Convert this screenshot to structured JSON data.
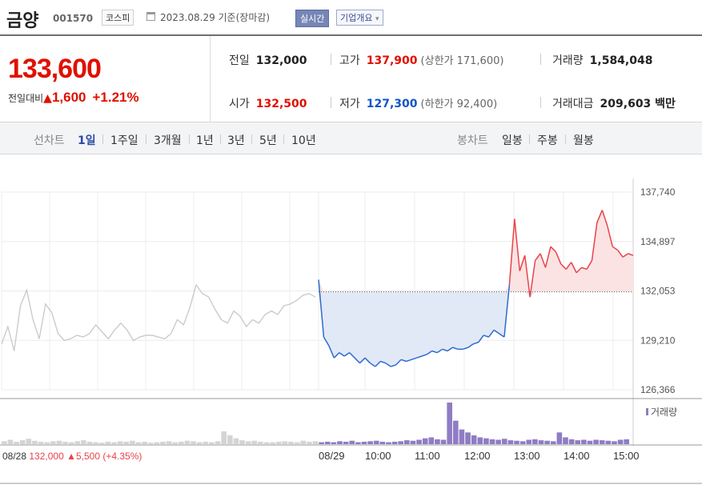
{
  "header": {
    "company": "금양",
    "code": "001570",
    "market": "코스피",
    "calendar_icon": "calendar-icon",
    "date": "2023.08.29 기준(장마감)",
    "realtime_label": "실시간",
    "overview_label": "기업개요",
    "overview_caret": "▾"
  },
  "price": {
    "current": "133,600",
    "change_label": "전일대비",
    "change_arrow": "▲",
    "change_amount": "1,600",
    "change_pct": "+1.21%",
    "up_color": "#e01000",
    "down_color": "#1055c8"
  },
  "stats": {
    "prev_close": {
      "label": "전일",
      "value": "132,000"
    },
    "high": {
      "label": "고가",
      "value": "137,900",
      "sub": "(상한가 171,600)"
    },
    "volume": {
      "label": "거래량",
      "value": "1,584,048"
    },
    "open": {
      "label": "시가",
      "value": "132,500"
    },
    "low": {
      "label": "저가",
      "value": "127,300",
      "sub": "(하한가 92,400)"
    },
    "trade_value": {
      "label": "거래대금",
      "value": "209,603 백만"
    }
  },
  "tabs": {
    "line_label": "선차트",
    "line_items": [
      "1일",
      "1주일",
      "3개월",
      "1년",
      "3년",
      "5년",
      "10년"
    ],
    "active": "1일",
    "candle_label": "봉차트",
    "candle_items": [
      "일봉",
      "주봉",
      "월봉"
    ]
  },
  "chart_data": {
    "type": "line",
    "y_ticks": [
      "137,740",
      "134,897",
      "132,053",
      "129,210",
      "126,366"
    ],
    "ylim": [
      126366,
      137740
    ],
    "baseline": 132000,
    "x_ticks": [
      "08/29",
      "10:00",
      "11:00",
      "12:00",
      "13:00",
      "14:00",
      "15:00"
    ],
    "prev_day": {
      "label": "08/28",
      "close": "132,000",
      "arrow": "▲",
      "change": "5,500",
      "pct": "(+4.35%)"
    },
    "volume_legend": "거래량",
    "grid": true,
    "prev_session_color": "#c8c8c8",
    "up_color": "#e8434a",
    "down_color": "#2e6bd1",
    "up_fill": "#fbe3e3",
    "down_fill": "#e1e9f7",
    "volume_color": "#8f7cc4",
    "prev_series": [
      129000,
      130000,
      128600,
      131200,
      132100,
      130400,
      129300,
      131300,
      130800,
      129600,
      129200,
      129300,
      129500,
      129400,
      129600,
      130100,
      129700,
      129300,
      129800,
      130200,
      129800,
      129200,
      129400,
      129500,
      129500,
      129400,
      129300,
      129600,
      130400,
      130100,
      131100,
      132400,
      131900,
      131700,
      131000,
      130400,
      130200,
      130900,
      130600,
      130000,
      130400,
      130200,
      130700,
      130900,
      130700,
      131200,
      131300,
      131500,
      131800,
      131900,
      131700
    ],
    "today_series": [
      132700,
      129400,
      128900,
      128200,
      128500,
      128300,
      128500,
      128200,
      127900,
      128200,
      127900,
      127700,
      128000,
      127900,
      127700,
      127800,
      128100,
      128000,
      128100,
      128200,
      128300,
      128400,
      128600,
      128500,
      128700,
      128600,
      128800,
      128700,
      128700,
      128800,
      129000,
      129100,
      129500,
      129400,
      129800,
      129600,
      129400,
      132400,
      136200,
      133200,
      134100,
      131700,
      133800,
      134200,
      133400,
      134600,
      134300,
      133600,
      133300,
      133700,
      133100,
      133400,
      133300,
      133800,
      136000,
      136700,
      135800,
      134600,
      134400,
      134000,
      134200,
      134100
    ],
    "volume_series": [
      6,
      9,
      5,
      8,
      11,
      7,
      5,
      4,
      6,
      7,
      5,
      4,
      6,
      8,
      5,
      4,
      3,
      5,
      4,
      6,
      5,
      7,
      4,
      5,
      3,
      4,
      5,
      6,
      4,
      5,
      7,
      6,
      4,
      5,
      4,
      6,
      26,
      18,
      12,
      8,
      6,
      7,
      5,
      4,
      4,
      5,
      6,
      5,
      4,
      7,
      5,
      6,
      4,
      5,
      4,
      6,
      5,
      7,
      4,
      5,
      6,
      7,
      5,
      4,
      5,
      6,
      8,
      7,
      9,
      12,
      14,
      10,
      9,
      85,
      48,
      30,
      24,
      18,
      14,
      12,
      10,
      9,
      11,
      8,
      7,
      6,
      9,
      10,
      8,
      7,
      6,
      24,
      14,
      10,
      8,
      9,
      7,
      9,
      8,
      7,
      6,
      9,
      10
    ]
  }
}
